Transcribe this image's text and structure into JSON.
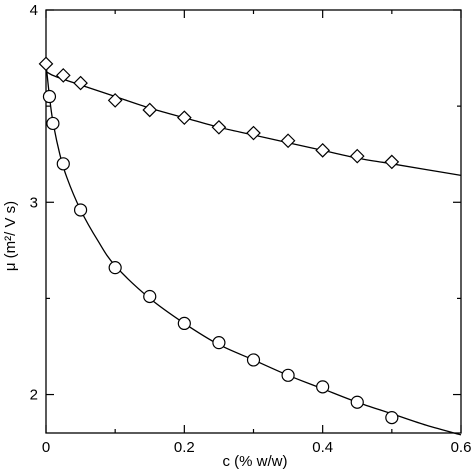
{
  "chart_data": {
    "type": "scatter",
    "title": "",
    "xlabel": "c (% w/w)",
    "ylabel": "μ (m²/ V s)",
    "xlim": [
      0,
      0.6
    ],
    "ylim": [
      1.8,
      4.0
    ],
    "x_ticks": [
      0,
      0.2,
      0.4,
      0.6
    ],
    "x_tick_labels": [
      "0",
      "0.2",
      "0.4",
      "0.6"
    ],
    "x_minor_ticks": [
      0.1,
      0.3,
      0.5
    ],
    "y_ticks": [
      2,
      3,
      4
    ],
    "y_tick_labels": [
      "2",
      "3",
      "4"
    ],
    "y_minor_ticks": [
      2.5,
      3.5
    ],
    "grid": false,
    "series": [
      {
        "marker": "diamond",
        "x": [
          0,
          0.025,
          0.05,
          0.1,
          0.15,
          0.2,
          0.25,
          0.3,
          0.35,
          0.4,
          0.45,
          0.5
        ],
        "y": [
          3.72,
          3.66,
          3.62,
          3.53,
          3.48,
          3.44,
          3.39,
          3.36,
          3.32,
          3.27,
          3.24,
          3.21
        ],
        "fit": {
          "x": [
            0,
            0.01,
            0.025,
            0.05,
            0.1,
            0.15,
            0.2,
            0.25,
            0.3,
            0.35,
            0.4,
            0.45,
            0.5,
            0.55,
            0.6
          ],
          "y": [
            3.68,
            3.66,
            3.64,
            3.61,
            3.55,
            3.49,
            3.44,
            3.39,
            3.35,
            3.31,
            3.27,
            3.23,
            3.2,
            3.17,
            3.14
          ]
        }
      },
      {
        "marker": "circle",
        "x": [
          0.005,
          0.01,
          0.025,
          0.05,
          0.1,
          0.15,
          0.2,
          0.25,
          0.3,
          0.35,
          0.4,
          0.45,
          0.5
        ],
        "y": [
          3.55,
          3.41,
          3.2,
          2.96,
          2.66,
          2.51,
          2.37,
          2.27,
          2.18,
          2.1,
          2.04,
          1.96,
          1.88
        ],
        "fit": {
          "x": [
            0,
            0.005,
            0.01,
            0.02,
            0.03,
            0.05,
            0.075,
            0.1,
            0.15,
            0.2,
            0.25,
            0.3,
            0.35,
            0.4,
            0.45,
            0.5,
            0.55,
            0.6
          ],
          "y": [
            3.72,
            3.55,
            3.42,
            3.25,
            3.13,
            2.96,
            2.8,
            2.67,
            2.5,
            2.37,
            2.26,
            2.18,
            2.1,
            2.03,
            1.96,
            1.9,
            1.84,
            1.79
          ]
        }
      }
    ]
  }
}
